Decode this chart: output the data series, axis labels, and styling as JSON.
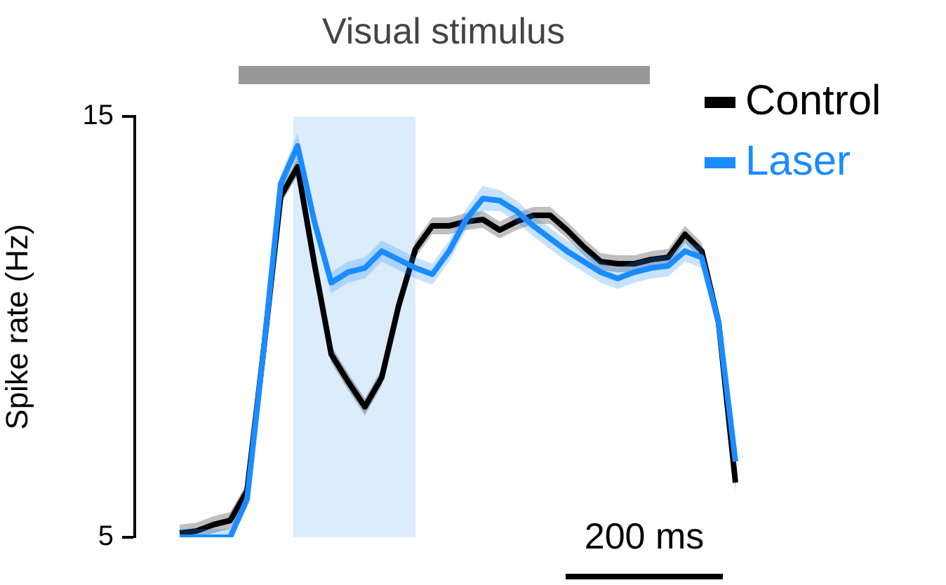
{
  "chart_data": {
    "type": "line",
    "ylabel": "Spike rate (Hz)",
    "annotations": [
      "Visual stimulus",
      "200 ms"
    ],
    "categories": [
      null,
      null,
      null,
      null,
      null,
      null,
      null,
      null,
      null,
      null,
      null,
      null,
      null,
      null,
      null,
      null,
      null,
      null,
      null,
      null,
      null,
      null,
      null,
      null,
      null,
      null,
      null,
      null,
      null,
      null,
      null,
      null,
      null,
      null
    ],
    "ylim": [
      5,
      15
    ],
    "yticks": [
      5,
      15
    ],
    "tick_labels": "y",
    "legend": "top right",
    "marker": "none",
    "line_style": "solid",
    "series": [
      {
        "name": "Control",
        "color": "#000000",
        "values": [
          5.1,
          5.15,
          5.3,
          5.4,
          6.1,
          9.5,
          13.1,
          13.8,
          11.5,
          9.35,
          8.7,
          8.1,
          8.8,
          10.5,
          11.85,
          12.4,
          12.4,
          12.5,
          12.55,
          12.3,
          12.5,
          12.65,
          12.65,
          12.3,
          11.9,
          11.55,
          11.5,
          11.5,
          11.6,
          11.65,
          12.2,
          11.8,
          10.1,
          6.3
        ],
        "lower": [
          5.0,
          5.0,
          5.1,
          5.2,
          5.9,
          9.3,
          12.9,
          13.6,
          11.3,
          9.15,
          8.5,
          7.9,
          8.6,
          10.3,
          11.65,
          12.2,
          12.2,
          12.3,
          12.35,
          12.1,
          12.3,
          12.45,
          12.45,
          12.1,
          11.7,
          11.35,
          11.3,
          11.3,
          11.4,
          11.45,
          12.0,
          11.6,
          9.9,
          6.1
        ],
        "upper": [
          5.3,
          5.35,
          5.5,
          5.6,
          6.3,
          9.7,
          13.3,
          14.0,
          11.7,
          9.55,
          8.9,
          8.3,
          9.0,
          10.7,
          12.05,
          12.6,
          12.6,
          12.7,
          12.75,
          12.5,
          12.7,
          12.85,
          12.85,
          12.5,
          12.1,
          11.75,
          11.7,
          11.7,
          11.8,
          11.85,
          12.4,
          12.0,
          10.3,
          6.5
        ]
      },
      {
        "name": "Laser",
        "color": "#1a8cff",
        "values": [
          5.0,
          5.0,
          5.0,
          5.0,
          5.9,
          9.5,
          13.4,
          14.3,
          12.5,
          11.05,
          11.3,
          11.4,
          11.8,
          11.6,
          11.4,
          11.25,
          11.8,
          12.55,
          13.05,
          13.0,
          12.75,
          12.4,
          12.1,
          11.8,
          11.55,
          11.3,
          11.15,
          11.3,
          11.4,
          11.45,
          11.8,
          11.65,
          10.1,
          6.8
        ],
        "lower": [
          5.0,
          5.0,
          5.0,
          5.0,
          5.7,
          9.3,
          13.2,
          14.0,
          12.25,
          10.8,
          11.05,
          11.15,
          11.55,
          11.35,
          11.15,
          11.0,
          11.55,
          12.3,
          12.75,
          12.75,
          12.5,
          12.15,
          11.85,
          11.55,
          11.3,
          11.05,
          10.9,
          11.05,
          11.15,
          11.2,
          11.55,
          11.4,
          9.9,
          6.6
        ],
        "upper": [
          5.2,
          5.2,
          5.2,
          5.2,
          6.1,
          9.7,
          13.6,
          14.6,
          12.75,
          11.3,
          11.55,
          11.65,
          12.05,
          11.85,
          11.65,
          11.5,
          12.05,
          12.8,
          13.35,
          13.25,
          13.0,
          12.65,
          12.35,
          12.05,
          11.8,
          11.55,
          11.4,
          11.55,
          11.65,
          11.7,
          12.05,
          11.9,
          10.3,
          7.0
        ]
      }
    ]
  }
}
